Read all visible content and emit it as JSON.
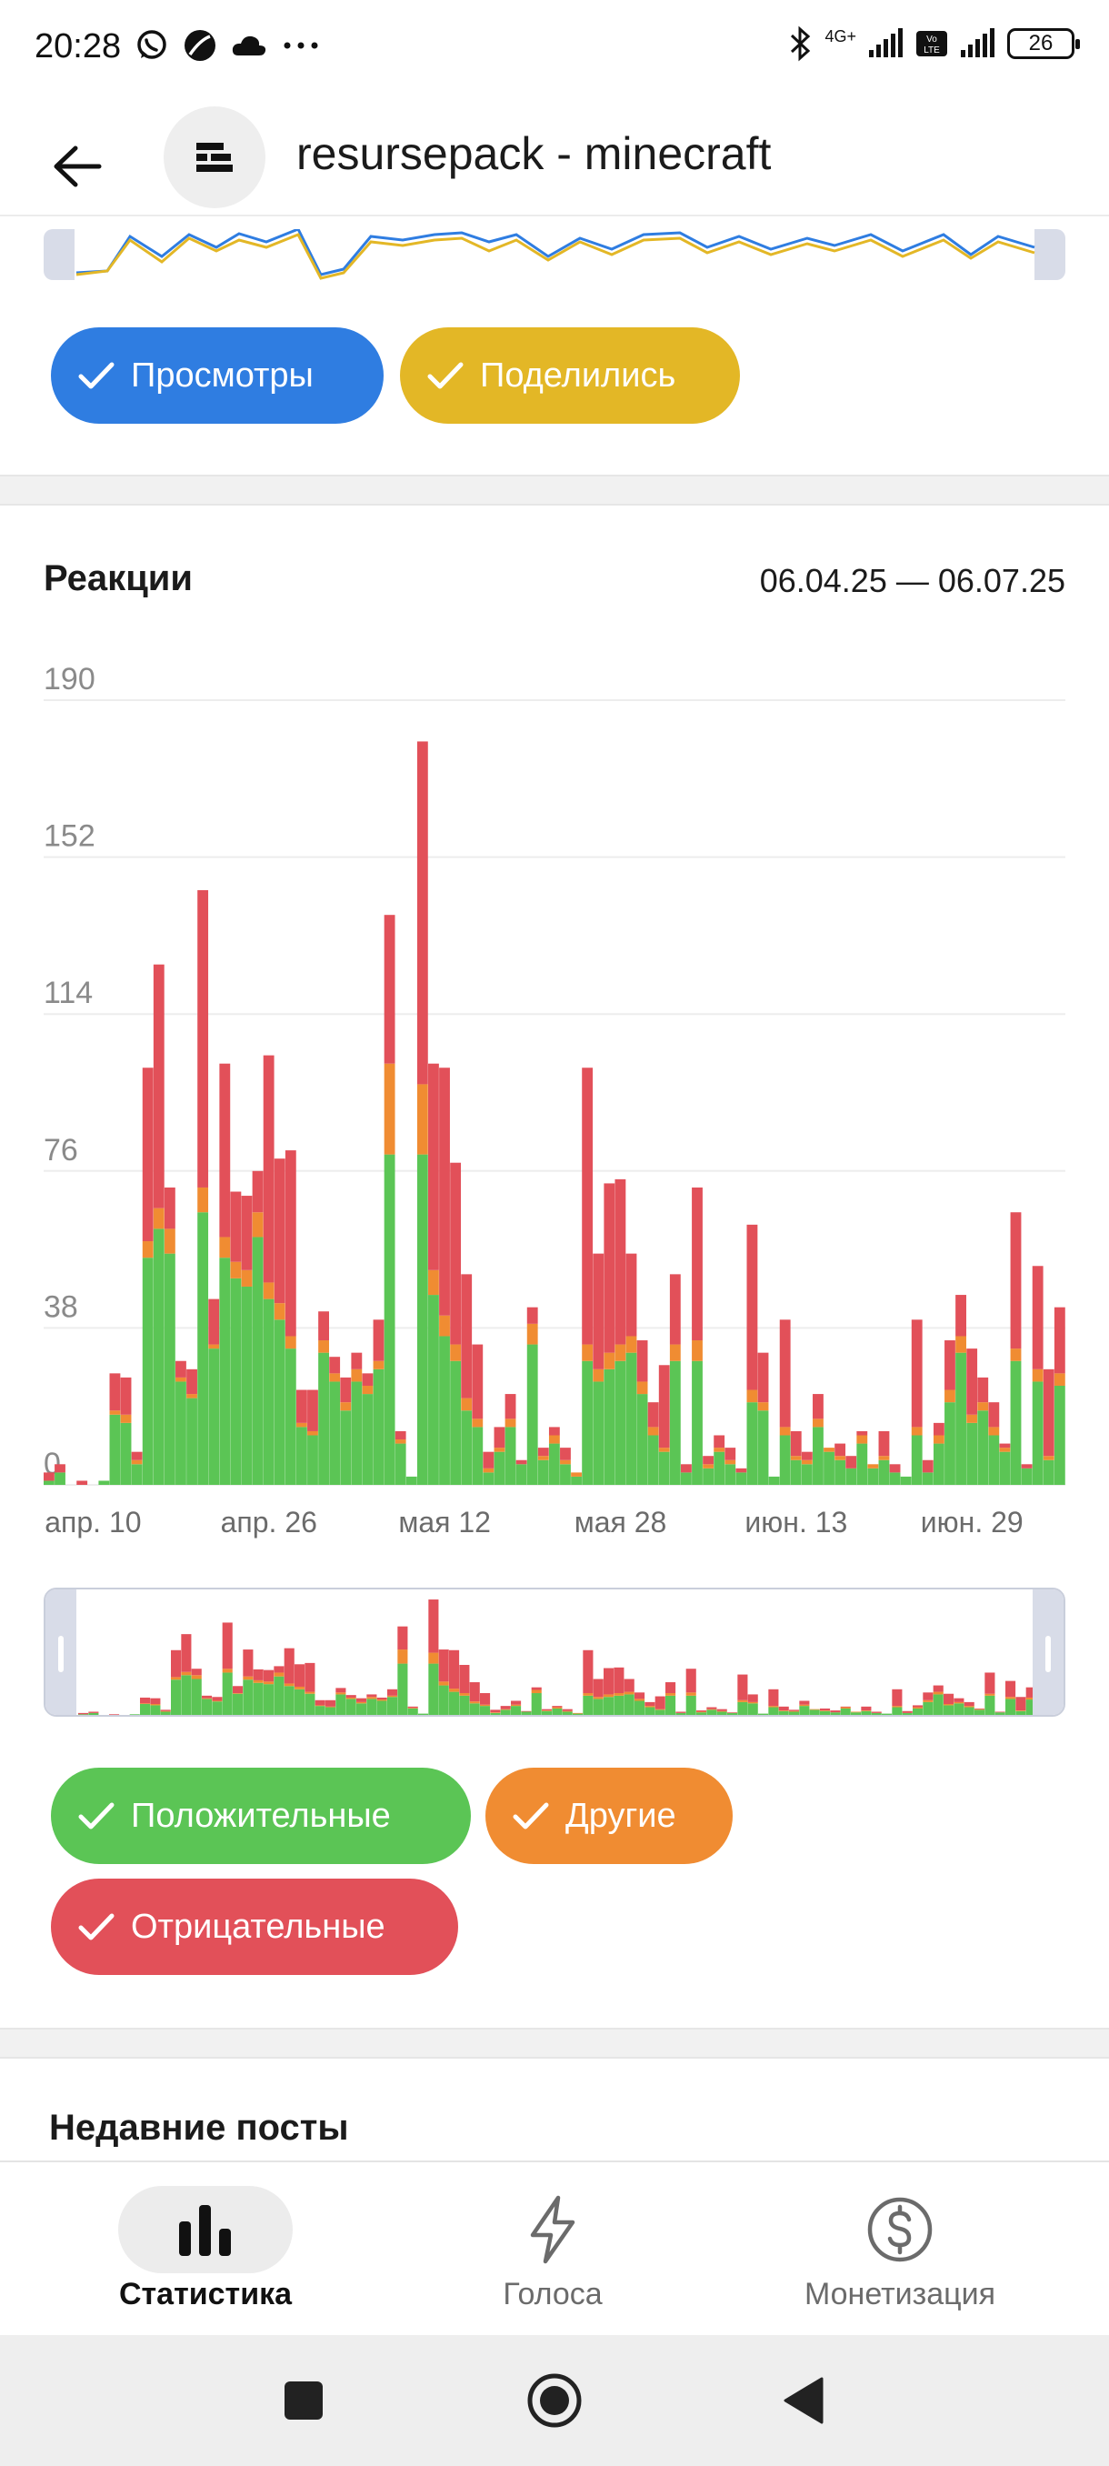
{
  "status_bar": {
    "time": "20:28",
    "network": "4G+",
    "battery": "26",
    "icons": [
      "whatsapp-icon",
      "vpn-icon",
      "cloud-icon",
      "more-icon",
      "bluetooth-icon",
      "signal-icon",
      "volte-icon",
      "battery-icon"
    ]
  },
  "header": {
    "title": "resursepack - minecraft",
    "back_icon": "arrow-left-icon",
    "avatar_icon": "channel-logo-icon"
  },
  "views_section": {
    "chips": [
      {
        "label": "Просмотры",
        "color": "#2f7de1"
      },
      {
        "label": "Поделились",
        "color": "#e3b726"
      }
    ]
  },
  "reactions_section": {
    "title": "Реакции",
    "date_range": "06.04.25 — 06.07.25",
    "chips": [
      {
        "label": "Положительные",
        "color": "#5bc555"
      },
      {
        "label": "Другие",
        "color": "#f08c32"
      },
      {
        "label": "Отрицательные",
        "color": "#e25059"
      }
    ]
  },
  "chart_data": {
    "type": "bar",
    "stacked": true,
    "title": "Реакции",
    "ylim": [
      0,
      190
    ],
    "y_ticks": [
      "190",
      "152",
      "114",
      "76",
      "38",
      "0"
    ],
    "x_tick_labels": [
      "апр. 10",
      "апр. 26",
      "мая 12",
      "мая 28",
      "июн. 13",
      "июн. 29"
    ],
    "x_tick_positions": [
      4,
      20,
      36,
      52,
      68,
      84
    ],
    "grid": true,
    "colors": {
      "positive": "#5bc555",
      "other": "#f08c32",
      "negative": "#e25059"
    },
    "series": [
      {
        "name": "Положительные",
        "values": [
          1,
          3,
          0,
          0,
          0,
          1,
          17,
          15,
          5,
          55,
          62,
          56,
          25,
          21,
          66,
          33,
          55,
          50,
          48,
          60,
          45,
          40,
          33,
          14,
          12,
          32,
          25,
          18,
          25,
          22,
          28,
          80,
          10,
          2,
          80,
          46,
          36,
          30,
          18,
          14,
          3,
          8,
          14,
          5,
          34,
          6,
          10,
          5,
          2,
          30,
          25,
          28,
          30,
          32,
          22,
          12,
          8,
          30,
          3,
          30,
          4,
          8,
          5,
          3,
          20,
          18,
          2,
          12,
          6,
          5,
          14,
          8,
          6,
          4,
          10,
          4,
          6,
          3,
          2,
          12,
          3,
          10,
          20,
          32,
          15,
          18,
          12,
          8,
          30,
          4,
          25,
          6,
          24
        ]
      },
      {
        "name": "Другие",
        "values": [
          0,
          0,
          0,
          0,
          0,
          0,
          1,
          2,
          1,
          4,
          5,
          6,
          1,
          1,
          6,
          1,
          5,
          4,
          4,
          6,
          4,
          4,
          3,
          1,
          1,
          3,
          2,
          2,
          3,
          2,
          2,
          22,
          1,
          0,
          17,
          6,
          5,
          4,
          3,
          2,
          1,
          1,
          2,
          0,
          5,
          1,
          2,
          1,
          1,
          4,
          3,
          4,
          4,
          4,
          3,
          2,
          1,
          4,
          0,
          5,
          1,
          1,
          1,
          0,
          3,
          2,
          0,
          2,
          1,
          1,
          2,
          1,
          1,
          0,
          2,
          1,
          1,
          0,
          0,
          2,
          0,
          2,
          3,
          4,
          2,
          2,
          2,
          1,
          3,
          0,
          3,
          1,
          3
        ]
      },
      {
        "name": "Отрицательные",
        "values": [
          2,
          2,
          0,
          1,
          0,
          0,
          9,
          9,
          2,
          42,
          59,
          10,
          4,
          6,
          72,
          11,
          42,
          17,
          18,
          10,
          55,
          35,
          45,
          8,
          10,
          7,
          4,
          6,
          4,
          3,
          10,
          36,
          2,
          0,
          83,
          50,
          60,
          44,
          30,
          18,
          4,
          5,
          6,
          1,
          4,
          2,
          2,
          3,
          0,
          67,
          28,
          41,
          40,
          20,
          10,
          6,
          20,
          17,
          2,
          37,
          2,
          3,
          3,
          1,
          40,
          12,
          0,
          26,
          6,
          2,
          6,
          0,
          3,
          3,
          1,
          0,
          6,
          2,
          0,
          26,
          3,
          3,
          12,
          10,
          16,
          6,
          6,
          1,
          33,
          1,
          25,
          21,
          16
        ]
      }
    ]
  },
  "recent_posts": {
    "title": "Недавние посты"
  },
  "bottom_nav": {
    "items": [
      {
        "label": "Статистика",
        "icon": "bar-chart-icon",
        "active": true
      },
      {
        "label": "Голоса",
        "icon": "lightning-icon",
        "active": false
      },
      {
        "label": "Монетизация",
        "icon": "dollar-icon",
        "active": false
      }
    ]
  },
  "system_nav": {
    "icons": [
      "recents-square-icon",
      "home-circle-icon",
      "back-triangle-icon"
    ]
  }
}
